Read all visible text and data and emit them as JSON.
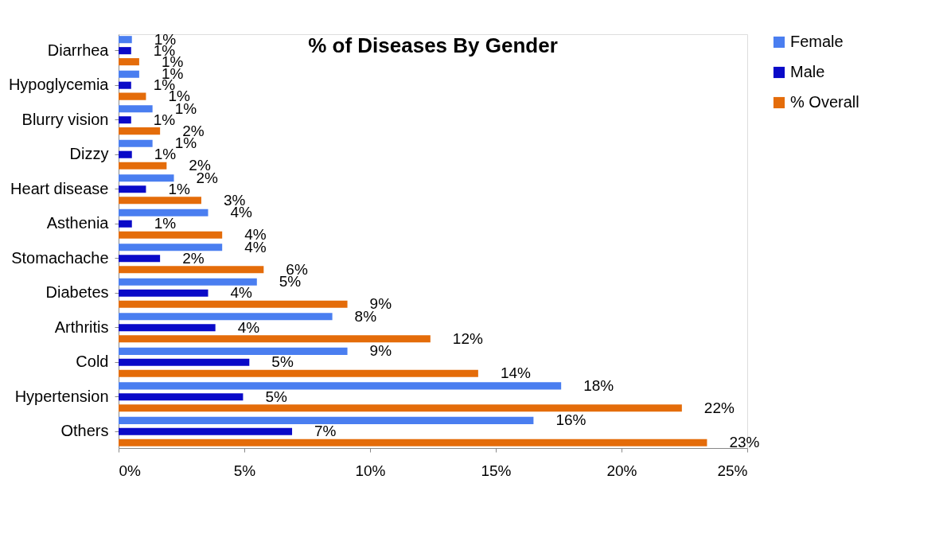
{
  "chart_data": {
    "type": "bar",
    "orientation": "horizontal",
    "title": "% of Diseases By Gender",
    "categories": [
      "Diarrhea",
      "Hypoglycemia",
      "Blurry vision",
      "Dizzy",
      "Heart disease",
      "Asthenia",
      "Stomachache",
      "Diabetes",
      "Arthritis",
      "Cold",
      "Hypertension",
      "Others"
    ],
    "series": [
      {
        "name": "Female",
        "color": "#4a7ef0",
        "values": [
          0.53,
          0.82,
          1.35,
          1.35,
          2.2,
          3.56,
          4.12,
          5.5,
          8.5,
          9.1,
          17.6,
          16.5
        ],
        "value_labels": [
          "1%",
          "1%",
          "1%",
          "1%",
          "2%",
          "4%",
          "4%",
          "5%",
          "8%",
          "9%",
          "18%",
          "16%"
        ]
      },
      {
        "name": "Male",
        "color": "#0a0ac8",
        "values": [
          0.5,
          0.5,
          0.5,
          0.53,
          1.09,
          0.53,
          1.65,
          3.56,
          3.85,
          5.2,
          4.95,
          6.9
        ],
        "value_labels": [
          "1%",
          "1%",
          "1%",
          "1%",
          "1%",
          "1%",
          "2%",
          "4%",
          "4%",
          "5%",
          "5%",
          "7%"
        ]
      },
      {
        "name": "% Overall",
        "color": "#e46c0a",
        "values": [
          0.82,
          1.09,
          1.65,
          1.91,
          3.29,
          4.12,
          5.77,
          9.1,
          12.4,
          14.3,
          22.4,
          23.4
        ],
        "value_labels": [
          "1%",
          "1%",
          "2%",
          "2%",
          "3%",
          "4%",
          "6%",
          "9%",
          "12%",
          "14%",
          "22%",
          "23%"
        ]
      }
    ],
    "xlim": [
      0,
      25
    ],
    "xticks": [
      {
        "value": 0,
        "label": "0%"
      },
      {
        "value": 5,
        "label": "5%"
      },
      {
        "value": 10,
        "label": "10%"
      },
      {
        "value": 15,
        "label": "15%"
      },
      {
        "value": 20,
        "label": "20%"
      },
      {
        "value": 25,
        "label": "25%"
      }
    ],
    "grid": false,
    "legend": "right"
  }
}
